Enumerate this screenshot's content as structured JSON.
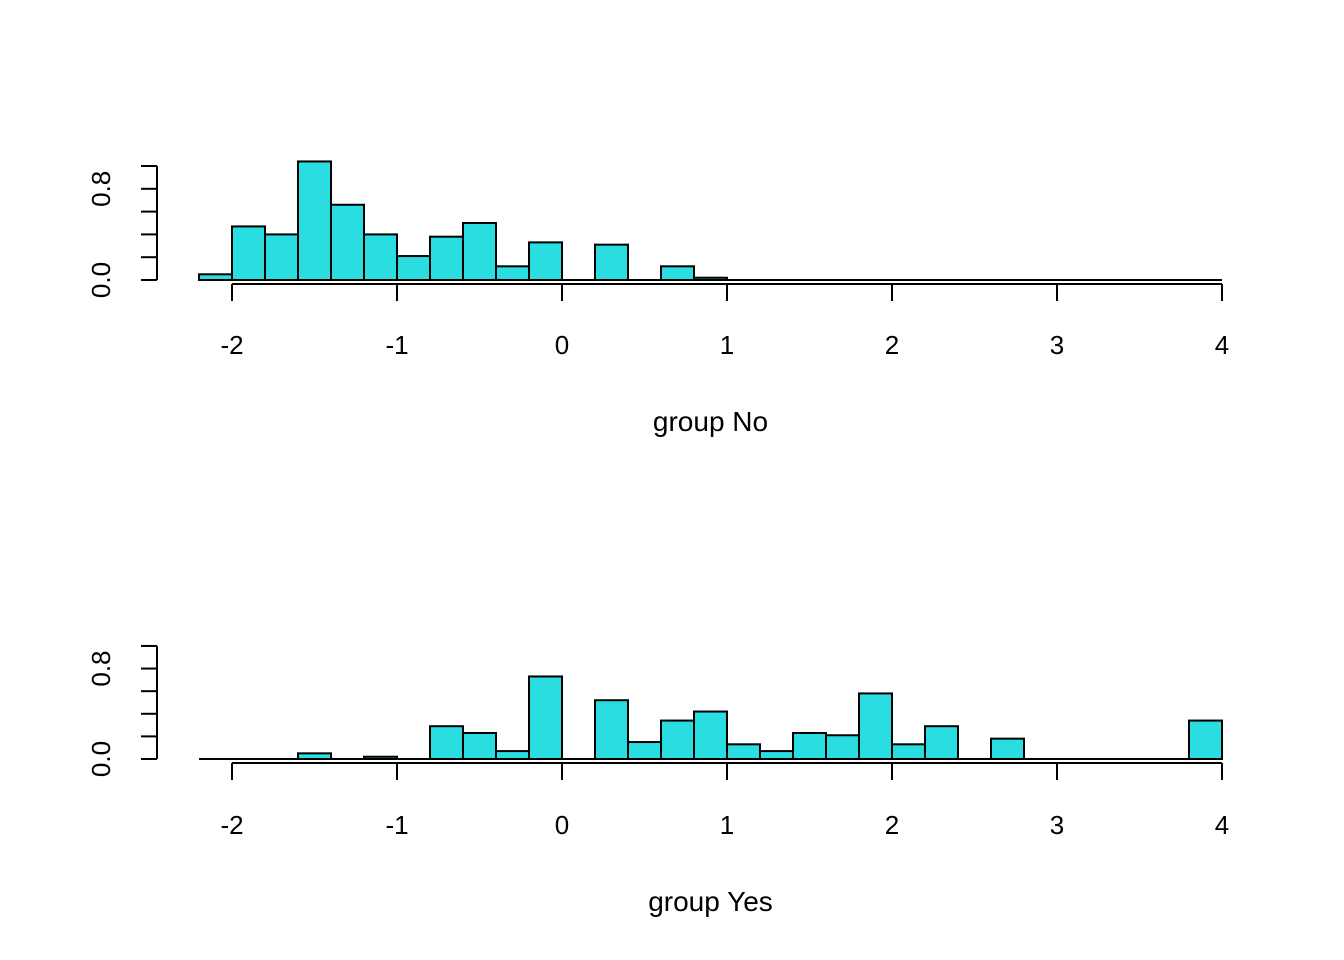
{
  "chart_data": [
    {
      "type": "bar",
      "subtype": "histogram",
      "xlabel": "group No",
      "ylabel": "",
      "bin_width": 0.2,
      "xlim": [
        -2.2,
        4.0
      ],
      "ylim": [
        0.0,
        1.0
      ],
      "x_ticks": [
        "-2",
        "-1",
        "0",
        "1",
        "2",
        "3",
        "4"
      ],
      "y_ticks": [
        "0.0",
        "0.8"
      ],
      "bars": [
        {
          "x0": -2.2,
          "x1": -2.0,
          "value": 0.05
        },
        {
          "x0": -2.0,
          "x1": -1.8,
          "value": 0.47
        },
        {
          "x0": -1.8,
          "x1": -1.6,
          "value": 0.4
        },
        {
          "x0": -1.6,
          "x1": -1.4,
          "value": 1.04
        },
        {
          "x0": -1.4,
          "x1": -1.2,
          "value": 0.66
        },
        {
          "x0": -1.2,
          "x1": -1.0,
          "value": 0.4
        },
        {
          "x0": -1.0,
          "x1": -0.8,
          "value": 0.21
        },
        {
          "x0": -0.8,
          "x1": -0.6,
          "value": 0.38
        },
        {
          "x0": -0.6,
          "x1": -0.4,
          "value": 0.5
        },
        {
          "x0": -0.4,
          "x1": -0.2,
          "value": 0.12
        },
        {
          "x0": -0.2,
          "x1": 0.0,
          "value": 0.33
        },
        {
          "x0": 0.0,
          "x1": 0.2,
          "value": 0.0
        },
        {
          "x0": 0.2,
          "x1": 0.4,
          "value": 0.31
        },
        {
          "x0": 0.4,
          "x1": 0.6,
          "value": 0.0
        },
        {
          "x0": 0.6,
          "x1": 0.8,
          "value": 0.12
        },
        {
          "x0": 0.8,
          "x1": 1.0,
          "value": 0.02
        }
      ],
      "color": "#2adde0"
    },
    {
      "type": "bar",
      "subtype": "histogram",
      "xlabel": "group Yes",
      "ylabel": "",
      "bin_width": 0.2,
      "xlim": [
        -2.2,
        4.0
      ],
      "ylim": [
        0.0,
        1.0
      ],
      "x_ticks": [
        "-2",
        "-1",
        "0",
        "1",
        "2",
        "3",
        "4"
      ],
      "y_ticks": [
        "0.0",
        "0.8"
      ],
      "bars": [
        {
          "x0": -1.6,
          "x1": -1.4,
          "value": 0.05
        },
        {
          "x0": -1.2,
          "x1": -1.0,
          "value": 0.02
        },
        {
          "x0": -0.8,
          "x1": -0.6,
          "value": 0.29
        },
        {
          "x0": -0.6,
          "x1": -0.4,
          "value": 0.23
        },
        {
          "x0": -0.4,
          "x1": -0.2,
          "value": 0.07
        },
        {
          "x0": -0.2,
          "x1": 0.0,
          "value": 0.73
        },
        {
          "x0": 0.0,
          "x1": 0.2,
          "value": 0.0
        },
        {
          "x0": 0.2,
          "x1": 0.4,
          "value": 0.52
        },
        {
          "x0": 0.4,
          "x1": 0.6,
          "value": 0.15
        },
        {
          "x0": 0.6,
          "x1": 0.8,
          "value": 0.34
        },
        {
          "x0": 0.8,
          "x1": 1.0,
          "value": 0.42
        },
        {
          "x0": 1.0,
          "x1": 1.2,
          "value": 0.13
        },
        {
          "x0": 1.2,
          "x1": 1.4,
          "value": 0.07
        },
        {
          "x0": 1.4,
          "x1": 1.6,
          "value": 0.23
        },
        {
          "x0": 1.6,
          "x1": 1.8,
          "value": 0.21
        },
        {
          "x0": 1.8,
          "x1": 2.0,
          "value": 0.58
        },
        {
          "x0": 2.0,
          "x1": 2.2,
          "value": 0.13
        },
        {
          "x0": 2.2,
          "x1": 2.4,
          "value": 0.29
        },
        {
          "x0": 2.4,
          "x1": 2.6,
          "value": 0.0
        },
        {
          "x0": 2.6,
          "x1": 2.8,
          "value": 0.18
        },
        {
          "x0": 3.8,
          "x1": 4.0,
          "value": 0.34
        }
      ],
      "color": "#2adde0"
    }
  ]
}
